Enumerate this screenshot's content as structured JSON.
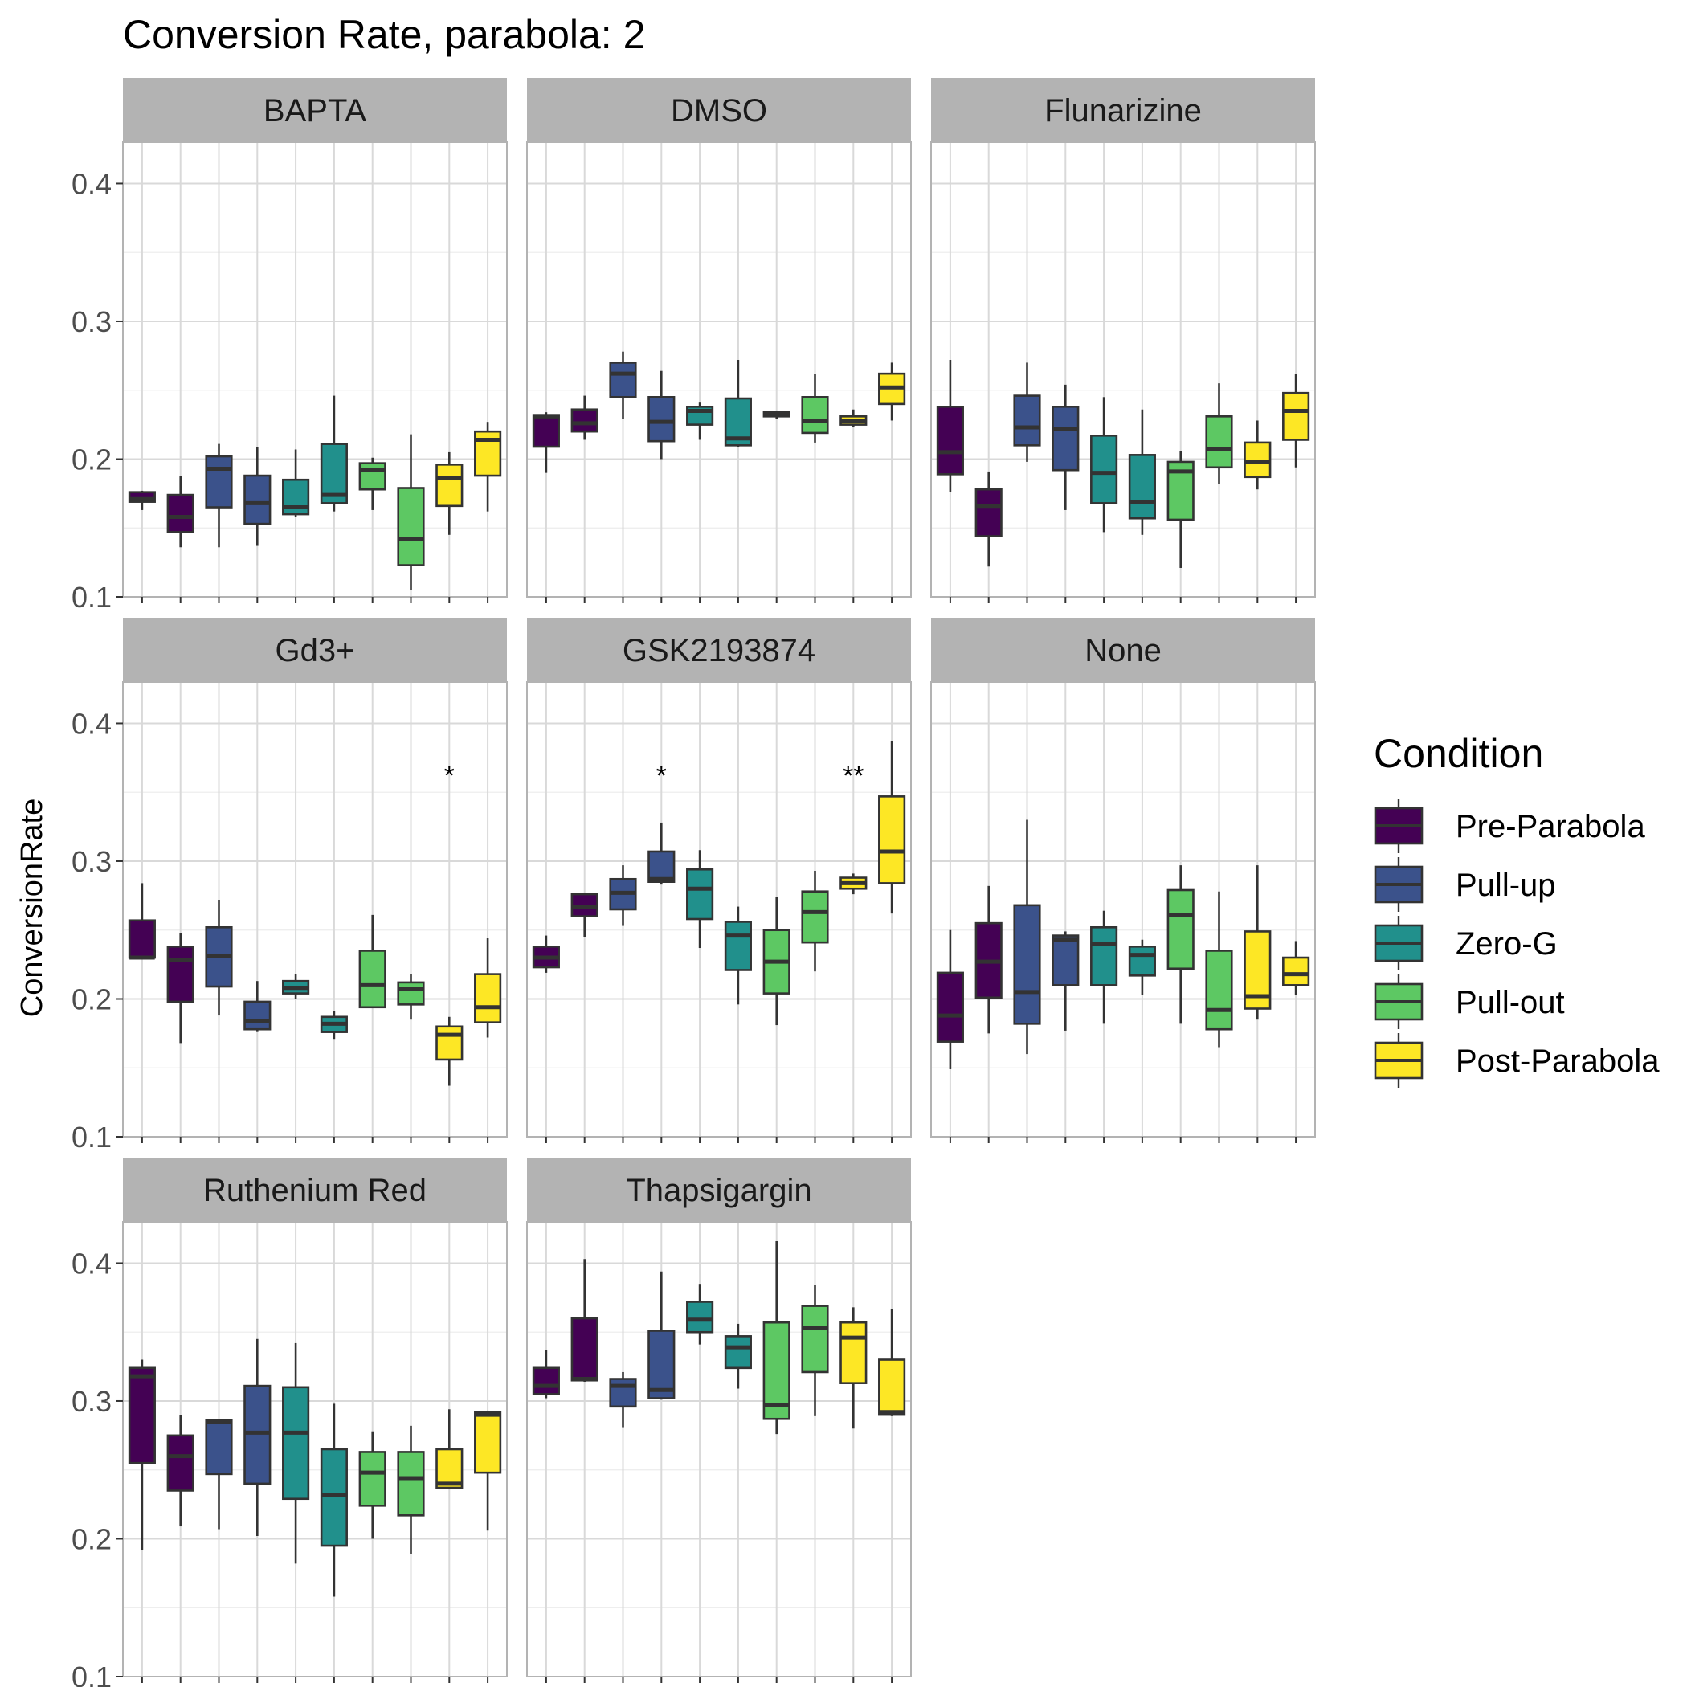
{
  "chart_data": {
    "type": "box",
    "title": "Conversion Rate, parabola: 2",
    "ylabel": "ConversionRate",
    "xlabel": "",
    "ylim": [
      0.1,
      0.43
    ],
    "y_ticks": [
      "0.1",
      "0.2",
      "0.3",
      "0.4"
    ],
    "y_tick_values": [
      0.1,
      0.2,
      0.3,
      0.4
    ],
    "grid": true,
    "legend": {
      "title": "Condition",
      "placement": "right",
      "entries": [
        {
          "name": "Pre-Parabola",
          "color": "#440154"
        },
        {
          "name": "Pull-up",
          "color": "#3b528b"
        },
        {
          "name": "Zero-G",
          "color": "#21908c"
        },
        {
          "name": "Pull-out",
          "color": "#5dc863"
        },
        {
          "name": "Post-Parabola",
          "color": "#fde725"
        }
      ]
    },
    "panels": [
      {
        "name": "BAPTA",
        "boxes": [
          {
            "condition": 0,
            "whisker_low": 0.163,
            "q1": 0.169,
            "median": 0.171,
            "q3": 0.176,
            "whisker_high": 0.177
          },
          {
            "condition": 0,
            "whisker_low": 0.136,
            "q1": 0.147,
            "median": 0.158,
            "q3": 0.174,
            "whisker_high": 0.188
          },
          {
            "condition": 1,
            "whisker_low": 0.136,
            "q1": 0.165,
            "median": 0.193,
            "q3": 0.202,
            "whisker_high": 0.211
          },
          {
            "condition": 1,
            "whisker_low": 0.137,
            "q1": 0.153,
            "median": 0.168,
            "q3": 0.188,
            "whisker_high": 0.209
          },
          {
            "condition": 2,
            "whisker_low": 0.158,
            "q1": 0.16,
            "median": 0.165,
            "q3": 0.185,
            "whisker_high": 0.207
          },
          {
            "condition": 2,
            "whisker_low": 0.162,
            "q1": 0.168,
            "median": 0.174,
            "q3": 0.211,
            "whisker_high": 0.246
          },
          {
            "condition": 3,
            "whisker_low": 0.163,
            "q1": 0.178,
            "median": 0.192,
            "q3": 0.197,
            "whisker_high": 0.201
          },
          {
            "condition": 3,
            "whisker_low": 0.105,
            "q1": 0.123,
            "median": 0.142,
            "q3": 0.179,
            "whisker_high": 0.218
          },
          {
            "condition": 4,
            "whisker_low": 0.145,
            "q1": 0.166,
            "median": 0.186,
            "q3": 0.196,
            "whisker_high": 0.205
          },
          {
            "condition": 4,
            "whisker_low": 0.162,
            "q1": 0.188,
            "median": 0.214,
            "q3": 0.22,
            "whisker_high": 0.227
          }
        ],
        "annotations": []
      },
      {
        "name": "DMSO",
        "boxes": [
          {
            "condition": 0,
            "whisker_low": 0.19,
            "q1": 0.209,
            "median": 0.231,
            "q3": 0.232,
            "whisker_high": 0.234
          },
          {
            "condition": 0,
            "whisker_low": 0.214,
            "q1": 0.22,
            "median": 0.226,
            "q3": 0.236,
            "whisker_high": 0.246
          },
          {
            "condition": 1,
            "whisker_low": 0.229,
            "q1": 0.245,
            "median": 0.262,
            "q3": 0.27,
            "whisker_high": 0.278
          },
          {
            "condition": 1,
            "whisker_low": 0.2,
            "q1": 0.213,
            "median": 0.227,
            "q3": 0.245,
            "whisker_high": 0.264
          },
          {
            "condition": 2,
            "whisker_low": 0.214,
            "q1": 0.225,
            "median": 0.235,
            "q3": 0.238,
            "whisker_high": 0.241
          },
          {
            "condition": 2,
            "whisker_low": 0.209,
            "q1": 0.21,
            "median": 0.215,
            "q3": 0.244,
            "whisker_high": 0.272
          },
          {
            "condition": 2,
            "whisker_low": 0.229,
            "q1": 0.231,
            "median": 0.233,
            "q3": 0.234,
            "whisker_high": 0.235
          },
          {
            "condition": 3,
            "whisker_low": 0.212,
            "q1": 0.219,
            "median": 0.228,
            "q3": 0.245,
            "whisker_high": 0.262
          },
          {
            "condition": 4,
            "whisker_low": 0.223,
            "q1": 0.225,
            "median": 0.228,
            "q3": 0.231,
            "whisker_high": 0.236
          },
          {
            "condition": 4,
            "whisker_low": 0.228,
            "q1": 0.24,
            "median": 0.252,
            "q3": 0.262,
            "whisker_high": 0.27
          }
        ],
        "annotations": []
      },
      {
        "name": "Flunarizine",
        "boxes": [
          {
            "condition": 0,
            "whisker_low": 0.176,
            "q1": 0.189,
            "median": 0.205,
            "q3": 0.238,
            "whisker_high": 0.272
          },
          {
            "condition": 0,
            "whisker_low": 0.122,
            "q1": 0.144,
            "median": 0.166,
            "q3": 0.178,
            "whisker_high": 0.191
          },
          {
            "condition": 1,
            "whisker_low": 0.198,
            "q1": 0.21,
            "median": 0.223,
            "q3": 0.246,
            "whisker_high": 0.27
          },
          {
            "condition": 1,
            "whisker_low": 0.163,
            "q1": 0.192,
            "median": 0.222,
            "q3": 0.238,
            "whisker_high": 0.254
          },
          {
            "condition": 2,
            "whisker_low": 0.147,
            "q1": 0.168,
            "median": 0.19,
            "q3": 0.217,
            "whisker_high": 0.245
          },
          {
            "condition": 2,
            "whisker_low": 0.145,
            "q1": 0.157,
            "median": 0.169,
            "q3": 0.203,
            "whisker_high": 0.236
          },
          {
            "condition": 3,
            "whisker_low": 0.121,
            "q1": 0.156,
            "median": 0.191,
            "q3": 0.198,
            "whisker_high": 0.206
          },
          {
            "condition": 3,
            "whisker_low": 0.182,
            "q1": 0.194,
            "median": 0.207,
            "q3": 0.231,
            "whisker_high": 0.255
          },
          {
            "condition": 4,
            "whisker_low": 0.178,
            "q1": 0.187,
            "median": 0.198,
            "q3": 0.212,
            "whisker_high": 0.228
          },
          {
            "condition": 4,
            "whisker_low": 0.194,
            "q1": 0.214,
            "median": 0.235,
            "q3": 0.248,
            "whisker_high": 0.262
          }
        ],
        "annotations": []
      },
      {
        "name": "Gd3+",
        "boxes": [
          {
            "condition": 0,
            "whisker_low": 0.23,
            "q1": 0.23,
            "median": 0.23,
            "q3": 0.257,
            "whisker_high": 0.284
          },
          {
            "condition": 0,
            "whisker_low": 0.168,
            "q1": 0.198,
            "median": 0.228,
            "q3": 0.238,
            "whisker_high": 0.248
          },
          {
            "condition": 1,
            "whisker_low": 0.188,
            "q1": 0.209,
            "median": 0.231,
            "q3": 0.252,
            "whisker_high": 0.272
          },
          {
            "condition": 1,
            "whisker_low": 0.176,
            "q1": 0.178,
            "median": 0.184,
            "q3": 0.198,
            "whisker_high": 0.213
          },
          {
            "condition": 2,
            "whisker_low": 0.2,
            "q1": 0.204,
            "median": 0.208,
            "q3": 0.213,
            "whisker_high": 0.218
          },
          {
            "condition": 2,
            "whisker_low": 0.171,
            "q1": 0.176,
            "median": 0.182,
            "q3": 0.187,
            "whisker_high": 0.191
          },
          {
            "condition": 3,
            "whisker_low": 0.194,
            "q1": 0.194,
            "median": 0.21,
            "q3": 0.235,
            "whisker_high": 0.261
          },
          {
            "condition": 3,
            "whisker_low": 0.185,
            "q1": 0.196,
            "median": 0.207,
            "q3": 0.212,
            "whisker_high": 0.218
          },
          {
            "condition": 4,
            "whisker_low": 0.137,
            "q1": 0.156,
            "median": 0.174,
            "q3": 0.18,
            "whisker_high": 0.187
          },
          {
            "condition": 4,
            "whisker_low": 0.172,
            "q1": 0.183,
            "median": 0.194,
            "q3": 0.218,
            "whisker_high": 0.244
          }
        ],
        "annotations": [
          {
            "box": 8,
            "label": "*",
            "y": 0.366
          }
        ]
      },
      {
        "name": "GSK2193874",
        "boxes": [
          {
            "condition": 0,
            "whisker_low": 0.219,
            "q1": 0.223,
            "median": 0.23,
            "q3": 0.238,
            "whisker_high": 0.246
          },
          {
            "condition": 0,
            "whisker_low": 0.245,
            "q1": 0.26,
            "median": 0.267,
            "q3": 0.276,
            "whisker_high": 0.277
          },
          {
            "condition": 1,
            "whisker_low": 0.253,
            "q1": 0.265,
            "median": 0.277,
            "q3": 0.287,
            "whisker_high": 0.297
          },
          {
            "condition": 1,
            "whisker_low": 0.283,
            "q1": 0.285,
            "median": 0.287,
            "q3": 0.307,
            "whisker_high": 0.328
          },
          {
            "condition": 2,
            "whisker_low": 0.237,
            "q1": 0.258,
            "median": 0.28,
            "q3": 0.294,
            "whisker_high": 0.308
          },
          {
            "condition": 2,
            "whisker_low": 0.196,
            "q1": 0.221,
            "median": 0.246,
            "q3": 0.256,
            "whisker_high": 0.267
          },
          {
            "condition": 3,
            "whisker_low": 0.181,
            "q1": 0.204,
            "median": 0.227,
            "q3": 0.25,
            "whisker_high": 0.274
          },
          {
            "condition": 3,
            "whisker_low": 0.22,
            "q1": 0.241,
            "median": 0.263,
            "q3": 0.278,
            "whisker_high": 0.293
          },
          {
            "condition": 4,
            "whisker_low": 0.276,
            "q1": 0.28,
            "median": 0.284,
            "q3": 0.288,
            "whisker_high": 0.291
          },
          {
            "condition": 4,
            "whisker_low": 0.262,
            "q1": 0.284,
            "median": 0.307,
            "q3": 0.347,
            "whisker_high": 0.387
          }
        ],
        "annotations": [
          {
            "box": 3,
            "label": "*",
            "y": 0.366
          },
          {
            "box": 8,
            "label": "**",
            "y": 0.366
          }
        ]
      },
      {
        "name": "None",
        "boxes": [
          {
            "condition": 0,
            "whisker_low": 0.149,
            "q1": 0.169,
            "median": 0.188,
            "q3": 0.219,
            "whisker_high": 0.25
          },
          {
            "condition": 0,
            "whisker_low": 0.175,
            "q1": 0.201,
            "median": 0.227,
            "q3": 0.255,
            "whisker_high": 0.282
          },
          {
            "condition": 1,
            "whisker_low": 0.16,
            "q1": 0.182,
            "median": 0.205,
            "q3": 0.268,
            "whisker_high": 0.33
          },
          {
            "condition": 1,
            "whisker_low": 0.177,
            "q1": 0.21,
            "median": 0.243,
            "q3": 0.246,
            "whisker_high": 0.249
          },
          {
            "condition": 2,
            "whisker_low": 0.182,
            "q1": 0.21,
            "median": 0.24,
            "q3": 0.252,
            "whisker_high": 0.264
          },
          {
            "condition": 2,
            "whisker_low": 0.203,
            "q1": 0.217,
            "median": 0.232,
            "q3": 0.238,
            "whisker_high": 0.243
          },
          {
            "condition": 3,
            "whisker_low": 0.182,
            "q1": 0.222,
            "median": 0.261,
            "q3": 0.279,
            "whisker_high": 0.297
          },
          {
            "condition": 3,
            "whisker_low": 0.165,
            "q1": 0.178,
            "median": 0.192,
            "q3": 0.235,
            "whisker_high": 0.278
          },
          {
            "condition": 4,
            "whisker_low": 0.185,
            "q1": 0.193,
            "median": 0.202,
            "q3": 0.249,
            "whisker_high": 0.297
          },
          {
            "condition": 4,
            "whisker_low": 0.203,
            "q1": 0.21,
            "median": 0.218,
            "q3": 0.23,
            "whisker_high": 0.242
          }
        ],
        "annotations": []
      },
      {
        "name": "Ruthenium Red",
        "boxes": [
          {
            "condition": 0,
            "whisker_low": 0.192,
            "q1": 0.255,
            "median": 0.318,
            "q3": 0.324,
            "whisker_high": 0.33
          },
          {
            "condition": 0,
            "whisker_low": 0.209,
            "q1": 0.235,
            "median": 0.26,
            "q3": 0.275,
            "whisker_high": 0.29
          },
          {
            "condition": 1,
            "whisker_low": 0.207,
            "q1": 0.247,
            "median": 0.285,
            "q3": 0.286,
            "whisker_high": 0.287
          },
          {
            "condition": 1,
            "whisker_low": 0.202,
            "q1": 0.24,
            "median": 0.277,
            "q3": 0.311,
            "whisker_high": 0.345
          },
          {
            "condition": 2,
            "whisker_low": 0.182,
            "q1": 0.229,
            "median": 0.277,
            "q3": 0.31,
            "whisker_high": 0.342
          },
          {
            "condition": 2,
            "whisker_low": 0.158,
            "q1": 0.195,
            "median": 0.232,
            "q3": 0.265,
            "whisker_high": 0.298
          },
          {
            "condition": 3,
            "whisker_low": 0.2,
            "q1": 0.224,
            "median": 0.248,
            "q3": 0.263,
            "whisker_high": 0.278
          },
          {
            "condition": 3,
            "whisker_low": 0.189,
            "q1": 0.217,
            "median": 0.244,
            "q3": 0.263,
            "whisker_high": 0.282
          },
          {
            "condition": 4,
            "whisker_low": 0.236,
            "q1": 0.237,
            "median": 0.24,
            "q3": 0.265,
            "whisker_high": 0.294
          },
          {
            "condition": 4,
            "whisker_low": 0.206,
            "q1": 0.248,
            "median": 0.29,
            "q3": 0.292,
            "whisker_high": 0.293
          }
        ],
        "annotations": []
      },
      {
        "name": "Thapsigargin",
        "boxes": [
          {
            "condition": 0,
            "whisker_low": 0.302,
            "q1": 0.305,
            "median": 0.311,
            "q3": 0.324,
            "whisker_high": 0.337
          },
          {
            "condition": 0,
            "whisker_low": 0.314,
            "q1": 0.315,
            "median": 0.316,
            "q3": 0.36,
            "whisker_high": 0.403
          },
          {
            "condition": 1,
            "whisker_low": 0.281,
            "q1": 0.296,
            "median": 0.311,
            "q3": 0.316,
            "whisker_high": 0.321
          },
          {
            "condition": 1,
            "whisker_low": 0.301,
            "q1": 0.302,
            "median": 0.308,
            "q3": 0.351,
            "whisker_high": 0.394
          },
          {
            "condition": 2,
            "whisker_low": 0.341,
            "q1": 0.35,
            "median": 0.359,
            "q3": 0.372,
            "whisker_high": 0.385
          },
          {
            "condition": 2,
            "whisker_low": 0.309,
            "q1": 0.324,
            "median": 0.339,
            "q3": 0.347,
            "whisker_high": 0.356
          },
          {
            "condition": 3,
            "whisker_low": 0.276,
            "q1": 0.287,
            "median": 0.297,
            "q3": 0.357,
            "whisker_high": 0.416
          },
          {
            "condition": 3,
            "whisker_low": 0.289,
            "q1": 0.321,
            "median": 0.353,
            "q3": 0.369,
            "whisker_high": 0.384
          },
          {
            "condition": 4,
            "whisker_low": 0.28,
            "q1": 0.313,
            "median": 0.346,
            "q3": 0.357,
            "whisker_high": 0.368
          },
          {
            "condition": 4,
            "whisker_low": 0.289,
            "q1": 0.29,
            "median": 0.292,
            "q3": 0.33,
            "whisker_high": 0.367
          }
        ],
        "annotations": []
      }
    ]
  }
}
